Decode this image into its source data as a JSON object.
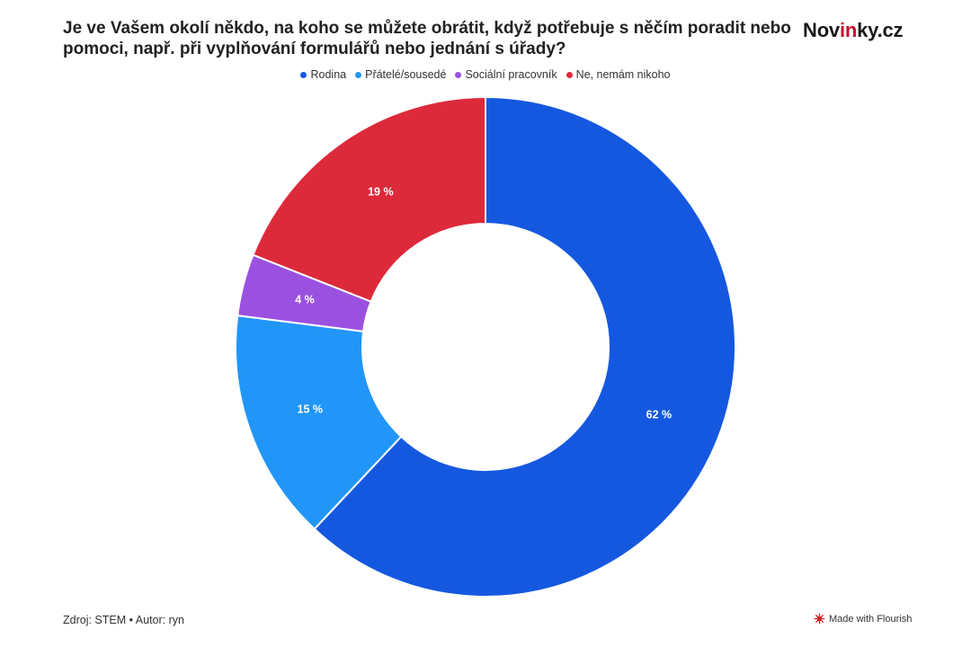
{
  "header": {
    "title": "Je ve Vašem okolí někdo, na koho se můžete obrátit, když potřebuje s něčím poradit nebo pomoci, např. při vyplňování formulářů nebo jednání s úřady?",
    "brand_prefix": "Nov",
    "brand_accent": "in",
    "brand_suffix": "ky.cz",
    "brand_accent_color": "#c8102e"
  },
  "chart_data": {
    "type": "pie",
    "variant": "donut",
    "legend_position": "top-center",
    "series": [
      {
        "name": "Rodina",
        "value": 62,
        "label": "62 %",
        "color": "#1558e0"
      },
      {
        "name": "Přátelé/sousedé",
        "value": 15,
        "label": "15 %",
        "color": "#2196f8"
      },
      {
        "name": "Sociální pracovník",
        "value": 4,
        "label": "4 %",
        "color": "#9b51e0"
      },
      {
        "name": "Ne, nemám nikoho",
        "value": 19,
        "label": "19 %",
        "color": "#dd2a3b"
      }
    ]
  },
  "footer": {
    "source": "Zdroj: STEM • Autor: ryn",
    "made_with": "Made with Flourish"
  }
}
